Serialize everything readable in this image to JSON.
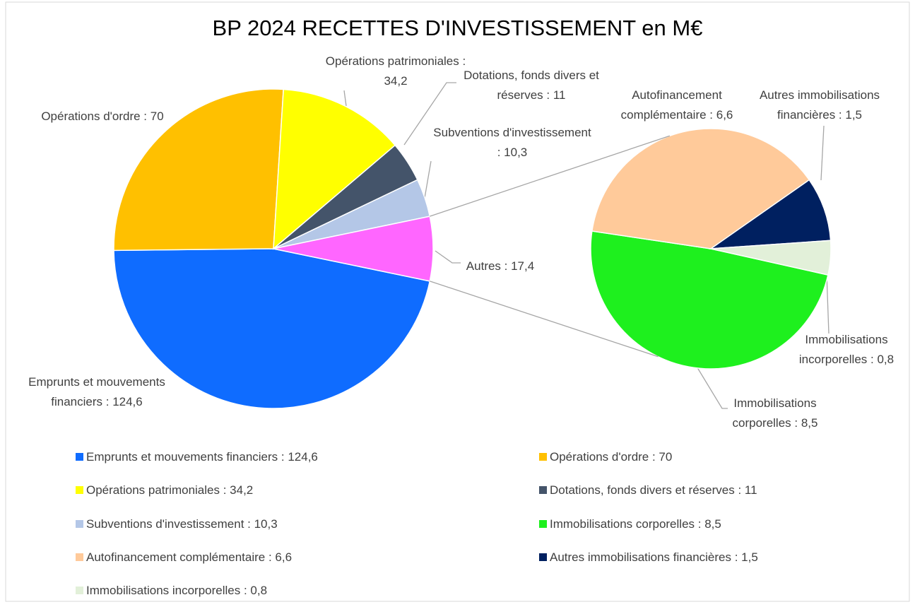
{
  "chart_data": {
    "type": "pie-of-pie",
    "title": "BP 2024 RECETTES D'INVESTISSEMENT en M€",
    "main": {
      "labels": [
        "Emprunts et mouvements financiers : 124,6",
        "Opérations d'ordre : 70",
        "Opérations patrimoniales : 34,2",
        "Dotations, fonds divers et réserves : 11",
        "Subventions d'investissement : 10,3"
      ],
      "values": [
        124.6,
        70,
        34.2,
        11,
        10.3
      ],
      "colors": [
        "#0f6cff",
        "#ffc000",
        "#ffff00",
        "#44546a",
        "#b4c7e7"
      ]
    },
    "other": {
      "label": "Autres : 17,4",
      "value": 17.4,
      "color": "#ff66ff"
    },
    "secondary": {
      "labels": [
        "Immobilisations corporelles : 8,5",
        "Autofinancement complémentaire : 6,6",
        "Autres immobilisations financières : 1,5",
        "Immobilisations incorporelles : 0,8"
      ],
      "values": [
        8.5,
        6.6,
        1.5,
        0.8
      ],
      "colors": [
        "#1ef01e",
        "#ffca9a",
        "#002060",
        "#e2f0d9"
      ]
    }
  }
}
